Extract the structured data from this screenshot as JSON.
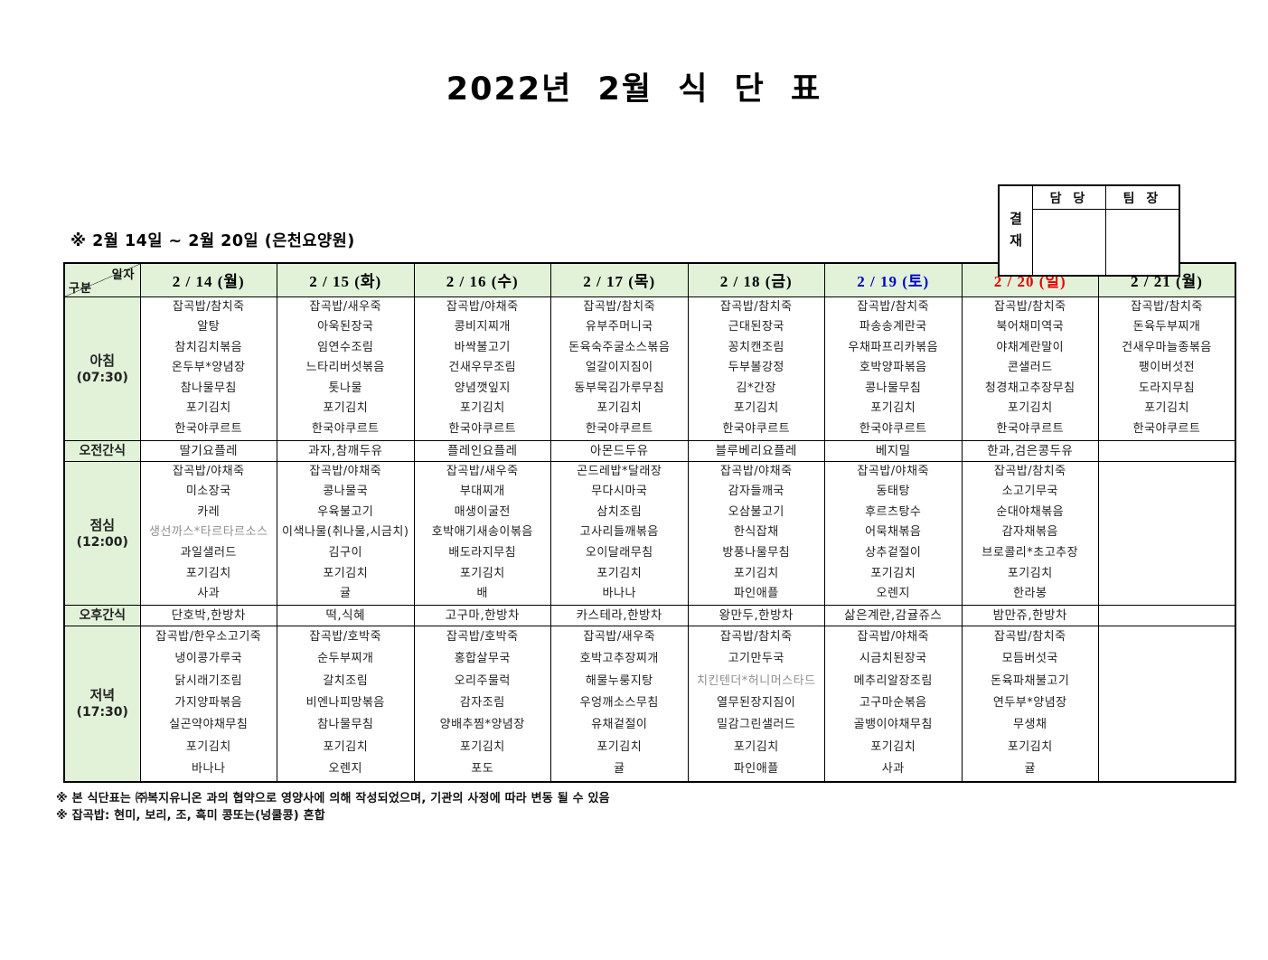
{
  "title": "2022년 2월 식 단 표",
  "approval": {
    "label": "결재",
    "columns": [
      "담 당",
      "팀 장"
    ]
  },
  "subtitle": "※ 2월 14일 ~ 2월 20일 (은천요양원)",
  "colors": {
    "header_bg": "#e1f2d8",
    "date_saturday": "#0000cc",
    "date_sunday": "#e60000",
    "muted_item": "#8f8f8f"
  },
  "table": {
    "corner": {
      "top": "일자",
      "bottom": "구분"
    },
    "dates": [
      {
        "label": "2 / 14 (월)",
        "color": "#000000"
      },
      {
        "label": "2 / 15 (화)",
        "color": "#000000"
      },
      {
        "label": "2 / 16 (수)",
        "color": "#000000"
      },
      {
        "label": "2 / 17 (목)",
        "color": "#000000"
      },
      {
        "label": "2 / 18 (금)",
        "color": "#000000"
      },
      {
        "label": "2 / 19 (토)",
        "color": "#0000cc"
      },
      {
        "label": "2 / 20 (일)",
        "color": "#e60000"
      },
      {
        "label": "2 / 21 (월)",
        "color": "#000000"
      }
    ],
    "rows": [
      {
        "label": "아침",
        "time": "(07:30)",
        "kind": "meal",
        "cells": [
          [
            "잡곡밥/참치죽",
            "알탕",
            "참치김치볶음",
            "온두부*양념장",
            "참나물무침",
            "포기김치",
            "한국야쿠르트"
          ],
          [
            "잡곡밥/새우죽",
            "아욱된장국",
            "임연수조림",
            "느타리버섯볶음",
            "톳나물",
            "포기김치",
            "한국야쿠르트"
          ],
          [
            "잡곡밥/야채죽",
            "콩비지찌개",
            "바싹불고기",
            "건새우무조림",
            "양념깻잎지",
            "포기김치",
            "한국야쿠르트"
          ],
          [
            "잡곡밥/참치죽",
            "유부주머니국",
            "돈육숙주굴소스볶음",
            "얼갈이지짐이",
            "동부묵김가루무침",
            "포기김치",
            "한국야쿠르트"
          ],
          [
            "잡곡밥/참치죽",
            "근대된장국",
            "꽁치캔조림",
            "두부볼강정",
            "김*간장",
            "포기김치",
            "한국야쿠르트"
          ],
          [
            "잡곡밥/참치죽",
            "파송송계란국",
            "우채파프리카볶음",
            "호박양파볶음",
            "콩나물무침",
            "포기김치",
            "한국야쿠르트"
          ],
          [
            "잡곡밥/참치죽",
            "북어채미역국",
            "야채계란말이",
            "콘샐러드",
            "청경채고추장무침",
            "포기김치",
            "한국야쿠르트"
          ],
          [
            "잡곡밥/참치죽",
            "돈육두부찌개",
            "건새우마늘종볶음",
            "팽이버섯전",
            "도라지무침",
            "포기김치",
            "한국야쿠르트"
          ]
        ]
      },
      {
        "label": "오전간식",
        "kind": "snack",
        "cells": [
          "딸기요플레",
          "과자,참깨두유",
          "플레인요플레",
          "아몬드두유",
          "블루베리요플레",
          "베지밀",
          "한과,검은콩두유",
          ""
        ]
      },
      {
        "label": "점심",
        "time": "(12:00)",
        "kind": "meal",
        "cells": [
          [
            "잡곡밥/야채죽",
            "미소장국",
            "카레",
            {
              "text": "생선까스*타르타르소스",
              "muted": true
            },
            "과일샐러드",
            "포기김치",
            "사과"
          ],
          [
            "잡곡밥/야채죽",
            "콩나물국",
            "우육불고기",
            "이색나물(취나물,시금치)",
            "김구이",
            "포기김치",
            "귤"
          ],
          [
            "잡곡밥/새우죽",
            "부대찌개",
            "매생이굴전",
            "호박애기새송이볶음",
            "배도라지무침",
            "포기김치",
            "배"
          ],
          [
            "곤드레밥*달래장",
            "무다시마국",
            "삼치조림",
            "고사리들깨볶음",
            "오이달래무침",
            "포기김치",
            "바나나"
          ],
          [
            "잡곡밥/야채죽",
            "감자들깨국",
            "오삼불고기",
            "한식잡채",
            "방풍나물무침",
            "포기김치",
            "파인애플"
          ],
          [
            "잡곡밥/야채죽",
            "동태탕",
            "후르츠탕수",
            "어묵채볶음",
            "상추겉절이",
            "포기김치",
            "오렌지"
          ],
          [
            "잡곡밥/참치죽",
            "소고기무국",
            "순대야채볶음",
            "감자채볶음",
            "브로콜리*초고추장",
            "포기김치",
            "한라봉"
          ],
          []
        ]
      },
      {
        "label": "오후간식",
        "kind": "snack",
        "cells": [
          "단호박,한방차",
          "떡,식혜",
          "고구마,한방차",
          "카스테라,한방차",
          "왕만두,한방차",
          "삶은계란,감귤쥬스",
          "밤만쥬,한방차",
          ""
        ]
      },
      {
        "label": "저녁",
        "time": "(17:30)",
        "kind": "meal",
        "cells": [
          [
            "잡곡밥/한우소고기죽",
            "냉이콩가루국",
            "닭시래기조림",
            "가지양파볶음",
            "실곤약야채무침",
            "포기김치",
            "바나나"
          ],
          [
            "잡곡밥/호박죽",
            "순두부찌개",
            "갈치조림",
            "비엔나피망볶음",
            "참나물무침",
            "포기김치",
            "오렌지"
          ],
          [
            "잡곡밥/호박죽",
            "홍합살무국",
            "오리주물럭",
            "감자조림",
            "양배추찜*양념장",
            "포기김치",
            "포도"
          ],
          [
            "잡곡밥/새우죽",
            "호박고추장찌개",
            "해물누룽지탕",
            "우엉깨소스무침",
            "유채겉절이",
            "포기김치",
            "귤"
          ],
          [
            "잡곡밥/참치죽",
            "고기만두국",
            {
              "text": "치킨텐더*허니머스타드",
              "muted": true
            },
            "열무된장지짐이",
            "밀감그린샐러드",
            "포기김치",
            "파인애플"
          ],
          [
            "잡곡밥/야채죽",
            "시금치된장국",
            "메추리알장조림",
            "고구마순볶음",
            "골뱅이야채무침",
            "포기김치",
            "사과"
          ],
          [
            "잡곡밥/참치죽",
            "모듬버섯국",
            "돈육파채불고기",
            "연두부*양념장",
            "무생채",
            "포기김치",
            "귤"
          ],
          []
        ]
      }
    ]
  },
  "notes": [
    "※ 본 식단표는 ㈜복지유니온 과의 협약으로 영양사에 의해 작성되었으며, 기관의 사정에 따라 변동 될 수 있음",
    "※ 잡곡밥: 현미, 보리, 조, 흑미 콩또는(넝쿨콩) 혼합"
  ]
}
